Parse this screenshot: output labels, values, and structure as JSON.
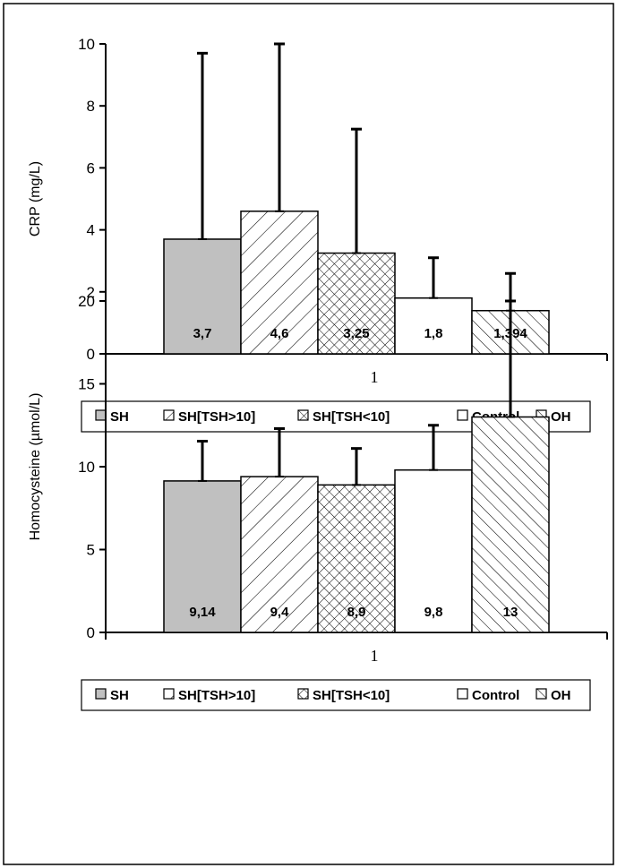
{
  "chart_data": [
    {
      "type": "bar",
      "ylabel": "CRP (mg/L)",
      "xlabel": "",
      "categories": [
        "1"
      ],
      "ylim": [
        0,
        10
      ],
      "yticks": [
        0,
        2,
        4,
        6,
        8,
        10
      ],
      "series": [
        {
          "name": "SH",
          "value": 3.7,
          "label": "3,7",
          "error": 6.0,
          "pattern": "solid-gray"
        },
        {
          "name": "SH[TSH>10]",
          "value": 4.6,
          "label": "4,6",
          "error": 5.4,
          "pattern": "diagonal-forward"
        },
        {
          "name": "SH[TSH<10]",
          "value": 3.25,
          "label": "3,25",
          "error": 4.0,
          "pattern": "crosshatch"
        },
        {
          "name": "Control",
          "value": 1.8,
          "label": "1,8",
          "error": 1.3,
          "pattern": "white"
        },
        {
          "name": "OH",
          "value": 1.394,
          "label": "1,394",
          "error": 1.2,
          "pattern": "diagonal-back"
        }
      ],
      "legend_position": "bottom"
    },
    {
      "type": "bar",
      "ylabel": "Homocysteine (µmol/L)",
      "xlabel": "",
      "categories": [
        "1"
      ],
      "ylim": [
        0,
        20
      ],
      "yticks": [
        0,
        5,
        10,
        15,
        20
      ],
      "series": [
        {
          "name": "SH",
          "value": 9.14,
          "label": "9,14",
          "error": 2.4,
          "pattern": "solid-gray"
        },
        {
          "name": "SH[TSH>10]",
          "value": 9.4,
          "label": "9,4",
          "error": 2.9,
          "pattern": "diagonal-forward"
        },
        {
          "name": "SH[TSH<10]",
          "value": 8.9,
          "label": "8,9",
          "error": 2.2,
          "pattern": "crosshatch"
        },
        {
          "name": "Control",
          "value": 9.8,
          "label": "9,8",
          "error": 2.7,
          "pattern": "white"
        },
        {
          "name": "OH",
          "value": 13,
          "label": "13",
          "error": 7.0,
          "pattern": "diagonal-back"
        }
      ],
      "legend_position": "bottom"
    }
  ],
  "colors": {
    "sh_fill": "#c0c0c0",
    "outline": "#000000",
    "background": "#ffffff"
  }
}
